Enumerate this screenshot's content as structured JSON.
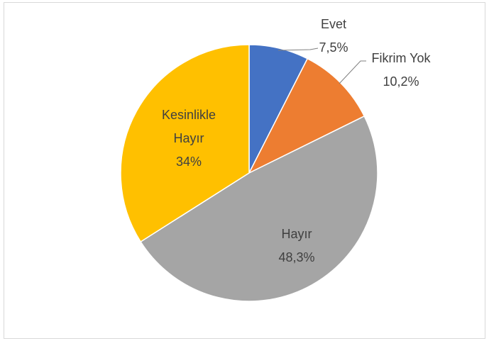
{
  "chart_data": {
    "type": "pie",
    "categories": [
      "Evet",
      "Fikrim Yok",
      "Hayır",
      "Kesinlikle Hayır"
    ],
    "values": [
      7.5,
      10.2,
      48.3,
      34
    ],
    "value_labels": [
      "7,5%",
      "10,2%",
      "48,3%",
      "34%"
    ],
    "colors": [
      "#4472c4",
      "#ed7d31",
      "#a5a5a5",
      "#ffc000"
    ]
  }
}
